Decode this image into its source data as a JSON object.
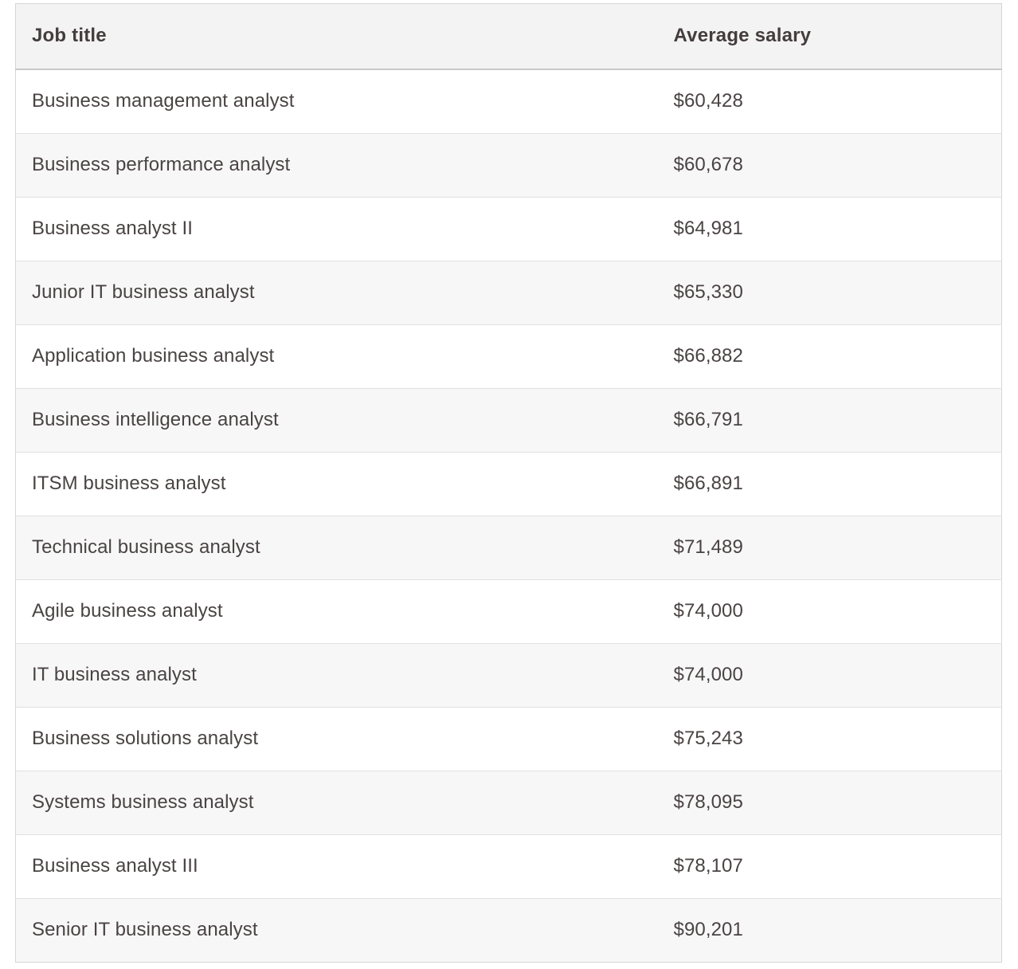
{
  "table": {
    "header": {
      "job_title": "Job title",
      "average_salary": "Average salary"
    },
    "rows": [
      {
        "job_title": "Business management analyst",
        "average_salary": "$60,428"
      },
      {
        "job_title": "Business performance analyst",
        "average_salary": "$60,678"
      },
      {
        "job_title": "Business analyst II",
        "average_salary": "$64,981"
      },
      {
        "job_title": "Junior IT business analyst",
        "average_salary": "$65,330"
      },
      {
        "job_title": "Application business analyst",
        "average_salary": "$66,882"
      },
      {
        "job_title": "Business intelligence analyst",
        "average_salary": "$66,791"
      },
      {
        "job_title": "ITSM business analyst",
        "average_salary": "$66,891"
      },
      {
        "job_title": "Technical business analyst",
        "average_salary": "$71,489"
      },
      {
        "job_title": "Agile business analyst",
        "average_salary": "$74,000"
      },
      {
        "job_title": "IT business analyst",
        "average_salary": "$74,000"
      },
      {
        "job_title": "Business solutions analyst",
        "average_salary": "$75,243"
      },
      {
        "job_title": "Systems business analyst",
        "average_salary": "$78,095"
      },
      {
        "job_title": "Business analyst III",
        "average_salary": "$78,107"
      },
      {
        "job_title": "Senior IT business analyst",
        "average_salary": "$90,201"
      }
    ],
    "colors": {
      "header_bg": "#f4f3f4",
      "row_bg": "#ffffff",
      "row_alt_bg": "#f8f7f8",
      "outer_border": "#d6d6d6",
      "row_border": "#e1e1e1",
      "header_border": "#c9c9c9",
      "header_text": "#443d3d",
      "body_text": "#4a4343"
    }
  }
}
